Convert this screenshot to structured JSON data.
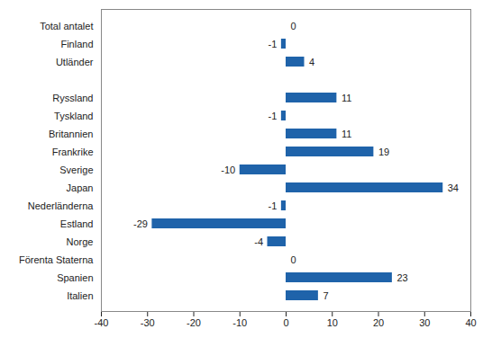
{
  "chart_data": {
    "type": "bar",
    "orientation": "horizontal",
    "categories": [
      "Total antalet",
      "Finland",
      "Utländer",
      null,
      "Ryssland",
      "Tyskland",
      "Britannien",
      "Frankrike",
      "Sverige",
      "Japan",
      "Nederländerna",
      "Estland",
      "Norge",
      "Förenta Staterna",
      "Spanien",
      "Italien"
    ],
    "values": [
      0,
      -1,
      4,
      null,
      11,
      -1,
      11,
      19,
      -10,
      34,
      -1,
      -29,
      -4,
      0,
      23,
      7
    ],
    "color": "#1f63aa",
    "xlim": [
      -40,
      40
    ],
    "xticks": [
      -40,
      -30,
      -20,
      -10,
      0,
      10,
      20,
      30,
      40
    ],
    "data_labels": true,
    "grid": false
  }
}
